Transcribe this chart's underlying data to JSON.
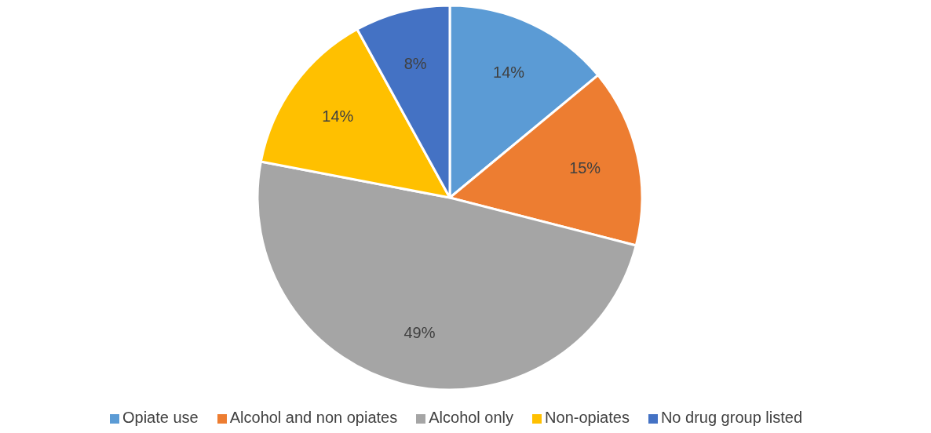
{
  "chart_data": {
    "type": "pie",
    "categories": [
      "Opiate use",
      "Alcohol and non opiates",
      "Alcohol only",
      "Non-opiates",
      "No drug group listed"
    ],
    "values": [
      14,
      15,
      49,
      14,
      8
    ],
    "colors": [
      "#5b9bd5",
      "#ed7d31",
      "#a5a5a5",
      "#ffc000",
      "#4472c4"
    ],
    "value_labels": [
      "14%",
      "15%",
      "49%",
      "14%",
      "8%"
    ],
    "legend": "bottom"
  }
}
